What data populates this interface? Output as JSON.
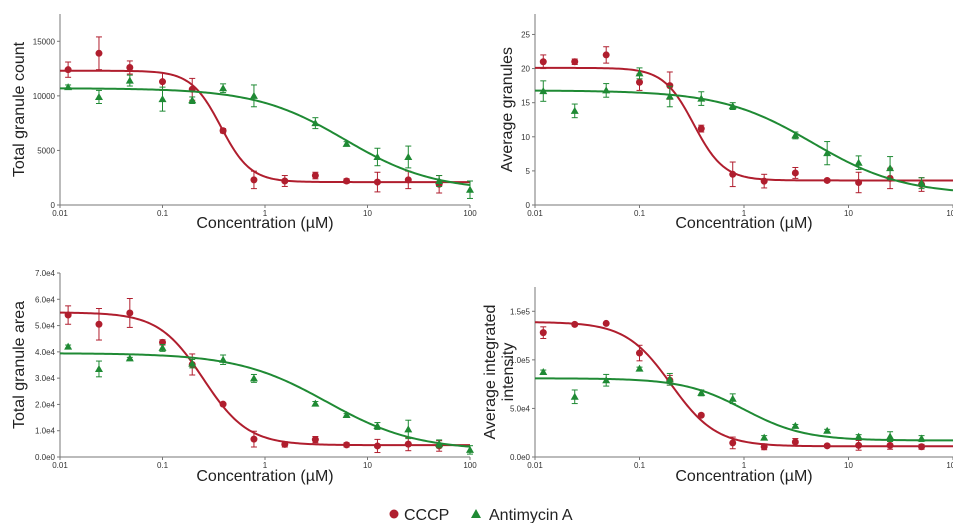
{
  "colors": {
    "CCCP": "#b01e2e",
    "Antimycin A": "#1f8a34",
    "axis": "#777777",
    "error": "#666666"
  },
  "legend": [
    {
      "name": "CCCP",
      "marker": "circle"
    },
    {
      "name": "Antimycin A",
      "marker": "triangle"
    }
  ],
  "chart_data": [
    {
      "type": "scatter",
      "xlabel": "Concentration (µM)",
      "ylabel": "Total granule count",
      "xscale": "log",
      "xlim": [
        0.01,
        100
      ],
      "ylim": [
        0,
        17500
      ],
      "x_ticks": [
        0.01,
        0.1,
        1,
        10,
        100
      ],
      "x_tick_labels": [
        "0.01",
        "0.1",
        "1",
        "10",
        "100"
      ],
      "y_ticks": [
        0,
        5000,
        10000,
        15000
      ],
      "y_tick_labels": [
        "0",
        "5000",
        "10000",
        "15000"
      ],
      "series": [
        {
          "name": "CCCP",
          "x": [
            0.012,
            0.024,
            0.048,
            0.1,
            0.195,
            0.39,
            0.78,
            1.56,
            3.1,
            6.25,
            12.5,
            25,
            50
          ],
          "y": [
            12400,
            13900,
            12600,
            11300,
            10600,
            6800,
            2300,
            2200,
            2700,
            2200,
            2100,
            2300,
            1900
          ],
          "err": [
            700,
            1500,
            600,
            800,
            1000,
            200,
            800,
            500,
            300,
            200,
            900,
            800,
            800
          ],
          "fit": {
            "bottom": 2100,
            "top": 12300,
            "ec50": 0.37,
            "hill": 3.0
          }
        },
        {
          "name": "Antimycin A",
          "x": [
            0.012,
            0.024,
            0.048,
            0.1,
            0.195,
            0.39,
            0.78,
            3.1,
            6.25,
            12.5,
            25,
            50,
            100
          ],
          "y": [
            10800,
            9900,
            11400,
            9700,
            9600,
            10700,
            10000,
            7500,
            5600,
            4400,
            4400,
            2200,
            1400
          ],
          "err": [
            200,
            600,
            500,
            1100,
            300,
            400,
            1000,
            500,
            200,
            800,
            1000,
            500,
            800
          ],
          "fit": {
            "bottom": 1300,
            "top": 10700,
            "ec50": 6.0,
            "hill": 1.0
          }
        }
      ]
    },
    {
      "type": "scatter",
      "xlabel": "Concentration (µM)",
      "ylabel": "Average granules",
      "xscale": "log",
      "xlim": [
        0.01,
        100
      ],
      "ylim": [
        0,
        28
      ],
      "x_ticks": [
        0.01,
        0.1,
        1,
        10,
        100
      ],
      "x_tick_labels": [
        "0.01",
        "0.1",
        "1",
        "10",
        "100"
      ],
      "y_ticks": [
        0,
        5,
        10,
        15,
        20,
        25
      ],
      "y_tick_labels": [
        "0",
        "5",
        "10",
        "15",
        "20",
        "25"
      ],
      "series": [
        {
          "name": "CCCP",
          "x": [
            0.012,
            0.024,
            0.048,
            0.1,
            0.195,
            0.39,
            0.78,
            1.56,
            3.1,
            6.25,
            12.5,
            25,
            50
          ],
          "y": [
            21,
            21,
            22,
            18,
            17.5,
            11.2,
            4.5,
            3.5,
            4.7,
            3.6,
            3.3,
            3.9,
            3.0
          ],
          "err": [
            1.0,
            0.4,
            1.2,
            1.2,
            2.0,
            0.5,
            1.8,
            1.0,
            0.8,
            0.2,
            1.5,
            1.5,
            1.0
          ],
          "fit": {
            "bottom": 3.6,
            "top": 20.1,
            "ec50": 0.33,
            "hill": 3.0
          }
        },
        {
          "name": "Antimycin A",
          "x": [
            0.012,
            0.024,
            0.048,
            0.1,
            0.195,
            0.39,
            0.78,
            3.1,
            6.25,
            12.5,
            25,
            50
          ],
          "y": [
            16.7,
            13.8,
            16.8,
            19.3,
            15.9,
            15.6,
            14.5,
            10.2,
            7.6,
            6.2,
            5.4,
            3.2
          ],
          "err": [
            1.5,
            1.0,
            1.0,
            0.8,
            1.5,
            1.0,
            0.5,
            0.5,
            1.7,
            1.0,
            1.7,
            0.8
          ],
          "fit": {
            "bottom": 1.5,
            "top": 16.8,
            "ec50": 4.5,
            "hill": 1.0
          }
        }
      ]
    },
    {
      "type": "scatter",
      "xlabel": "Concentration (µM)",
      "ylabel": "Total granule area",
      "xscale": "log",
      "xlim": [
        0.01,
        100
      ],
      "ylim": [
        0,
        70000
      ],
      "x_ticks": [
        0.01,
        0.1,
        1,
        10,
        100
      ],
      "x_tick_labels": [
        "0.01",
        "0.1",
        "1",
        "10",
        "100"
      ],
      "y_ticks": [
        0,
        10000,
        20000,
        30000,
        40000,
        50000,
        60000,
        70000
      ],
      "y_tick_labels": [
        "0.0e0",
        "1.0e4",
        "2.0e4",
        "3.0e4",
        "4.0e4",
        "5.0e4",
        "6.0e4",
        "7.0e4"
      ],
      "series": [
        {
          "name": "CCCP",
          "x": [
            0.012,
            0.024,
            0.048,
            0.1,
            0.195,
            0.39,
            0.78,
            1.56,
            3.1,
            6.25,
            12.5,
            25,
            50
          ],
          "y": [
            54000,
            50500,
            54800,
            43600,
            35200,
            20100,
            6800,
            4800,
            6600,
            4600,
            4200,
            4900,
            4200
          ],
          "err": [
            3500,
            6000,
            5500,
            1000,
            4000,
            500,
            3000,
            1000,
            1200,
            800,
            2500,
            2500,
            2000
          ],
          "fit": {
            "bottom": 4500,
            "top": 55000,
            "ec50": 0.25,
            "hill": 2.0
          }
        },
        {
          "name": "Antimycin A",
          "x": [
            0.012,
            0.024,
            0.048,
            0.1,
            0.195,
            0.39,
            0.78,
            3.1,
            6.25,
            12.5,
            25,
            50,
            100
          ],
          "y": [
            42000,
            33500,
            37500,
            41500,
            35500,
            37000,
            29900,
            20300,
            16000,
            11800,
            10500,
            5000,
            2700
          ],
          "err": [
            600,
            3000,
            400,
            1300,
            1600,
            1800,
            1500,
            800,
            500,
            1300,
            3500,
            1500,
            1600
          ],
          "fit": {
            "bottom": 2500,
            "top": 39500,
            "ec50": 4.0,
            "hill": 1.0
          }
        }
      ]
    },
    {
      "type": "scatter",
      "xlabel": "Concentration (µM)",
      "ylabel": [
        "Average integrated",
        "intensity"
      ],
      "xscale": "log",
      "xlim": [
        0.01,
        100
      ],
      "ylim": [
        0,
        175000
      ],
      "x_ticks": [
        0.01,
        0.1,
        1,
        10,
        100
      ],
      "x_tick_labels": [
        "0.01",
        "0.1",
        "1",
        "10",
        "100"
      ],
      "y_ticks": [
        0,
        50000,
        100000,
        150000
      ],
      "y_tick_labels": [
        "0.0e0",
        "5.0e4",
        "1.0e5",
        "1.5e5"
      ],
      "series": [
        {
          "name": "CCCP",
          "x": [
            0.012,
            0.024,
            0.048,
            0.1,
            0.195,
            0.39,
            0.78,
            1.56,
            3.1,
            6.25,
            12.5,
            25,
            50
          ],
          "y": [
            128000,
            136500,
            137500,
            107000,
            79000,
            43000,
            14500,
            10500,
            15500,
            11500,
            12000,
            12000,
            10500
          ],
          "err": [
            6000,
            1500,
            1000,
            8000,
            5000,
            1500,
            6000,
            3000,
            3500,
            1500,
            5000,
            4000,
            2500
          ],
          "fit": {
            "bottom": 11000,
            "top": 139000,
            "ec50": 0.2,
            "hill": 2.0
          }
        },
        {
          "name": "Antimycin A",
          "x": [
            0.012,
            0.024,
            0.048,
            0.1,
            0.195,
            0.39,
            0.78,
            1.56,
            3.1,
            6.25,
            12.5,
            25,
            50
          ],
          "y": [
            87500,
            62000,
            79000,
            91000,
            80000,
            66000,
            60000,
            20000,
            32000,
            27000,
            21000,
            21000,
            19000
          ],
          "err": [
            2000,
            7000,
            6000,
            1500,
            6000,
            3000,
            5000,
            2000,
            1500,
            1500,
            2000,
            5000,
            3000
          ],
          "fit": {
            "bottom": 17000,
            "top": 81000,
            "ec50": 1.0,
            "hill": 1.5
          }
        }
      ]
    }
  ]
}
